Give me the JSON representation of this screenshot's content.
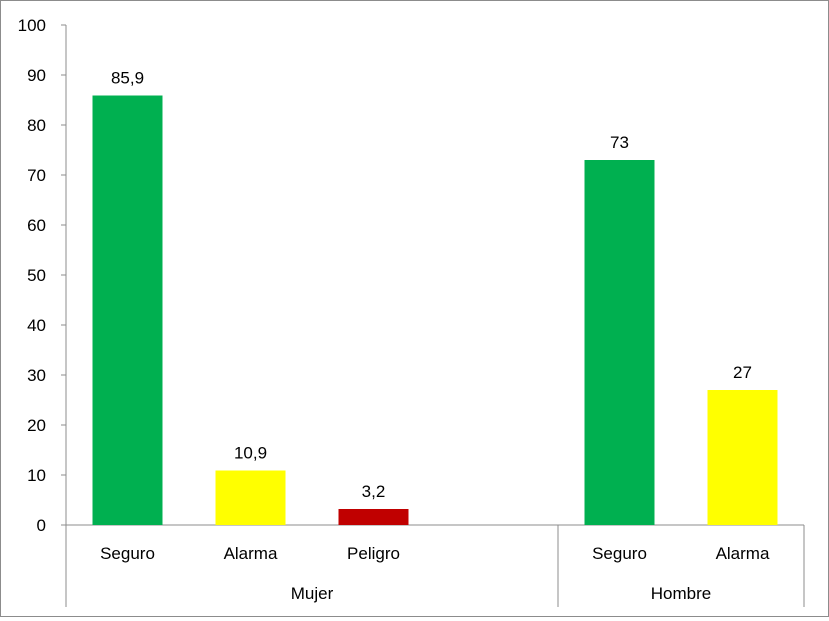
{
  "chart_data": {
    "type": "bar",
    "title": "",
    "xlabel": "",
    "ylabel": "",
    "ylim": [
      0,
      100
    ],
    "yticks": [
      0,
      10,
      20,
      30,
      40,
      50,
      60,
      70,
      80,
      90,
      100
    ],
    "grid": false,
    "legend": "none",
    "groups": [
      {
        "name": "Mujer",
        "bars": [
          {
            "category": "Seguro",
            "value": 85.9,
            "label": "85,9",
            "color": "#00B050"
          },
          {
            "category": "Alarma",
            "value": 10.9,
            "label": "10,9",
            "color": "#FFFF00"
          },
          {
            "category": "Peligro",
            "value": 3.2,
            "label": "3,2",
            "color": "#C00000"
          }
        ]
      },
      {
        "name": "Hombre",
        "bars": [
          {
            "category": "Seguro",
            "value": 73,
            "label": "73",
            "color": "#00B050"
          },
          {
            "category": "Alarma",
            "value": 27,
            "label": "27",
            "color": "#FFFF00"
          }
        ]
      }
    ]
  }
}
